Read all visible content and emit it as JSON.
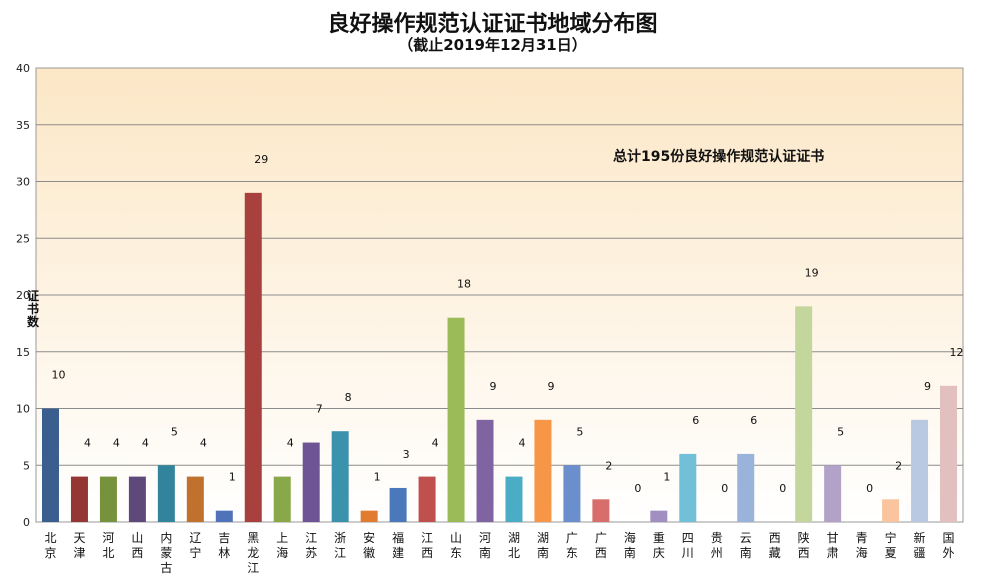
{
  "chart_data": {
    "type": "bar",
    "title": "良好操作规范认证证书地域分布图",
    "subtitle": "（截止2019年12月31日）",
    "ylabel": "证书数",
    "ylim": [
      0,
      40
    ],
    "yticks": [
      0,
      5,
      10,
      15,
      20,
      25,
      30,
      35,
      40
    ],
    "grid": true,
    "legend": "none",
    "annotation": "总计195份良好操作规范认证证书",
    "categories": [
      "北京",
      "天津",
      "河北",
      "山西",
      "内蒙古",
      "辽宁",
      "吉林",
      "黑龙江",
      "上海",
      "江苏",
      "浙江",
      "安徽",
      "福建",
      "江西",
      "山东",
      "河南",
      "湖北",
      "湖南",
      "广东",
      "广西",
      "海南",
      "重庆",
      "四川",
      "贵州",
      "云南",
      "西藏",
      "陕西",
      "甘肃",
      "青海",
      "宁夏",
      "新疆",
      "国外"
    ],
    "values": [
      10,
      4,
      4,
      4,
      5,
      4,
      1,
      29,
      4,
      7,
      8,
      1,
      3,
      4,
      18,
      9,
      4,
      9,
      5,
      2,
      0,
      1,
      6,
      0,
      6,
      0,
      19,
      5,
      0,
      2,
      9,
      12
    ],
    "colors": [
      "#3A5F8F",
      "#943634",
      "#76923C",
      "#5F497A",
      "#31849B",
      "#C0712E",
      "#4F72B8",
      "#A8403D",
      "#88A84A",
      "#6E5494",
      "#3B92AC",
      "#E07B30",
      "#4A78BA",
      "#C0504D",
      "#9BBB59",
      "#8064A2",
      "#4BACC6",
      "#F79646",
      "#6A8FCC",
      "#D86E6B",
      "#B5CE86",
      "#A08FC0",
      "#72C0D8",
      "#F9B880",
      "#9AB3DA",
      "#E4A6A4",
      "#C3D69B",
      "#B2A2C7",
      "#A5D6E4",
      "#FAC59E",
      "#B9C9E2",
      "#E3C0C0"
    ]
  }
}
